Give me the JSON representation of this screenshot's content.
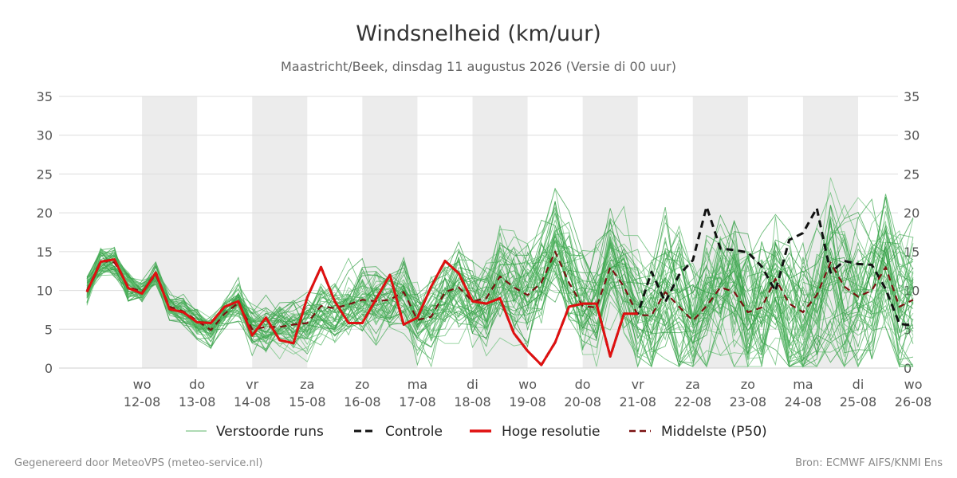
{
  "footer": {
    "left": "Gegenereerd door MeteoVPS (meteo-service.nl)",
    "right": "Bron: ECMWF AIFS/KNMI Ens"
  },
  "chart_data": {
    "type": "line",
    "title": "Windsnelheid (km/uur)",
    "subtitle": "Maastricht/Beek, dinsdag 11 augustus 2026 (Versie di 00 uur)",
    "ylim": [
      0,
      35
    ],
    "yticks": [
      0,
      5,
      10,
      15,
      20,
      25,
      30,
      35
    ],
    "x_start": "11-08",
    "x_step_hours": 6,
    "day_ticks": [
      {
        "day": "wo",
        "date": "12-08",
        "x_index": 4
      },
      {
        "day": "do",
        "date": "13-08",
        "x_index": 8
      },
      {
        "day": "vr",
        "date": "14-08",
        "x_index": 12
      },
      {
        "day": "za",
        "date": "15-08",
        "x_index": 16
      },
      {
        "day": "zo",
        "date": "16-08",
        "x_index": 20
      },
      {
        "day": "ma",
        "date": "17-08",
        "x_index": 24
      },
      {
        "day": "di",
        "date": "18-08",
        "x_index": 28
      },
      {
        "day": "wo",
        "date": "19-08",
        "x_index": 32
      },
      {
        "day": "do",
        "date": "20-08",
        "x_index": 36
      },
      {
        "day": "vr",
        "date": "21-08",
        "x_index": 40
      },
      {
        "day": "za",
        "date": "22-08",
        "x_index": 44
      },
      {
        "day": "zo",
        "date": "23-08",
        "x_index": 48
      },
      {
        "day": "ma",
        "date": "24-08",
        "x_index": 52
      },
      {
        "day": "di",
        "date": "25-08",
        "x_index": 56
      },
      {
        "day": "wo",
        "date": "26-08",
        "x_index": 60
      }
    ],
    "shaded_days": [
      "12-08",
      "14-08",
      "16-08",
      "18-08",
      "20-08",
      "22-08",
      "24-08"
    ],
    "grid": true,
    "legend_position": "bottom",
    "legend": [
      {
        "label": "Verstoorde runs",
        "color": "#2e9e3f",
        "style": "solid-thin"
      },
      {
        "label": "Controle",
        "color": "#111111",
        "style": "dashed"
      },
      {
        "label": "Hoge resolutie",
        "color": "#e01010",
        "style": "solid-thick"
      },
      {
        "label": "Middelste (P50)",
        "color": "#7a1010",
        "style": "dashed"
      }
    ],
    "ensemble_color": "#2e9e3f",
    "ensemble_members": 50,
    "series": [
      {
        "role": "control",
        "color": "#111111",
        "x_index": [
          0,
          1,
          2,
          3,
          4,
          5,
          6,
          7,
          8,
          9,
          10,
          11,
          12,
          13,
          14,
          15,
          16,
          17,
          18,
          19,
          20,
          21,
          22,
          23,
          24,
          25,
          26,
          27,
          28,
          29,
          30,
          31,
          32,
          33,
          34,
          35,
          36,
          37,
          38,
          39,
          40,
          41,
          42,
          43,
          44,
          45,
          46,
          47,
          48,
          49,
          50,
          51,
          52,
          53,
          54,
          55,
          56,
          57,
          58,
          59,
          60
        ],
        "values": [
          9.8,
          13.7,
          14.0,
          10.3,
          9.6,
          12.3,
          7.6,
          7.2,
          5.9,
          5.8,
          7.9,
          8.6,
          4.2,
          6.5,
          3.6,
          3.2,
          9.1,
          13.0,
          8.6,
          5.8,
          5.8,
          8.9,
          12.0,
          5.6,
          6.5,
          10.5,
          13.8,
          12.2,
          8.6,
          8.3,
          9.0,
          4.5,
          2.2,
          0.4,
          3.3,
          7.9,
          8.3,
          8.3,
          1.5,
          7.0,
          7.0,
          12.4,
          8.5,
          12.0,
          13.9,
          20.8,
          15.4,
          15.2,
          14.9,
          13.1,
          9.9,
          16.5,
          17.4,
          20.6,
          12.3,
          13.8,
          13.4,
          13.3,
          10.2,
          5.7,
          5.5
        ]
      },
      {
        "role": "high_resolution",
        "color": "#e01010",
        "x_index": [
          0,
          1,
          2,
          3,
          4,
          5,
          6,
          7,
          8,
          9,
          10,
          11,
          12,
          13,
          14,
          15,
          16,
          17,
          18,
          19,
          20,
          21,
          22,
          23,
          24,
          25,
          26,
          27,
          28,
          29,
          30,
          31,
          32,
          33,
          34,
          35,
          36,
          37,
          38,
          39,
          40
        ],
        "values": [
          9.8,
          13.7,
          14.0,
          10.3,
          9.6,
          12.3,
          7.6,
          7.2,
          5.9,
          5.8,
          7.9,
          8.6,
          4.2,
          6.5,
          3.6,
          3.2,
          9.1,
          13.0,
          8.6,
          5.8,
          5.8,
          8.9,
          12.0,
          5.6,
          6.5,
          10.5,
          13.8,
          12.2,
          8.6,
          8.3,
          9.0,
          4.5,
          2.2,
          0.4,
          3.3,
          7.9,
          8.3,
          8.3,
          1.5,
          7.0,
          7.0
        ]
      },
      {
        "role": "median_p50",
        "color": "#7a1010",
        "x_index": [
          0,
          1,
          2,
          3,
          4,
          5,
          6,
          7,
          8,
          9,
          10,
          11,
          12,
          13,
          14,
          15,
          16,
          17,
          18,
          19,
          20,
          21,
          22,
          23,
          24,
          25,
          26,
          27,
          28,
          29,
          30,
          31,
          32,
          33,
          34,
          35,
          36,
          37,
          38,
          39,
          40,
          41,
          42,
          43,
          44,
          45,
          46,
          47,
          48,
          49,
          50,
          51,
          52,
          53,
          54,
          55,
          56,
          57,
          58,
          59,
          60
        ],
        "values": [
          10.0,
          13.8,
          13.6,
          10.5,
          9.8,
          12.0,
          7.9,
          7.3,
          6.1,
          4.9,
          7.0,
          8.4,
          5.0,
          5.3,
          5.3,
          5.6,
          5.8,
          8.0,
          7.7,
          8.2,
          8.8,
          8.6,
          8.8,
          9.8,
          6.2,
          6.6,
          9.8,
          10.4,
          8.6,
          9.0,
          11.8,
          10.4,
          9.4,
          11.0,
          15.0,
          11.0,
          8.0,
          7.8,
          13.0,
          10.5,
          6.8,
          6.8,
          9.8,
          7.9,
          6.1,
          8.0,
          10.4,
          9.8,
          7.2,
          7.8,
          11.5,
          8.3,
          7.2,
          9.4,
          13.6,
          10.5,
          9.2,
          10.0,
          13.0,
          7.9,
          8.8
        ]
      }
    ]
  }
}
